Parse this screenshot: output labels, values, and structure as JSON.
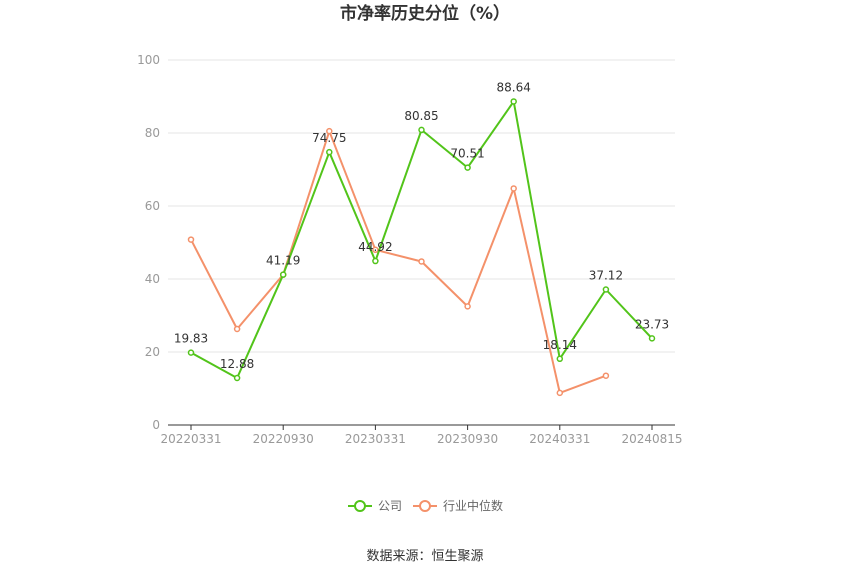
{
  "chart_data": {
    "type": "line",
    "title": "市净率历史分位（%）",
    "ylim": [
      0,
      100
    ],
    "yticks": [
      "0",
      "20",
      "40",
      "60",
      "80",
      "100"
    ],
    "xticks": [
      "20220331",
      "20220930",
      "20230331",
      "20230930",
      "20240331",
      "20240815"
    ],
    "grid": true,
    "legend_position": "bottom-center",
    "series": [
      {
        "name": "公司",
        "color": "#52c41a",
        "values": [
          19.83,
          12.88,
          41.19,
          74.75,
          44.92,
          80.85,
          70.51,
          88.64,
          18.14,
          37.12,
          23.73
        ],
        "labels": [
          "19.83",
          "12.88",
          "41.19",
          "74.75",
          "44.92",
          "80.85",
          "70.51",
          "88.64",
          "18.14",
          "37.12",
          "23.73"
        ]
      },
      {
        "name": "行业中位数",
        "color": "#f4916a",
        "values": [
          50.8,
          26.3,
          41.2,
          80.5,
          48.0,
          44.8,
          32.5,
          64.8,
          8.8,
          13.5,
          null
        ],
        "labels": []
      }
    ],
    "source": "数据来源：恒生聚源"
  }
}
